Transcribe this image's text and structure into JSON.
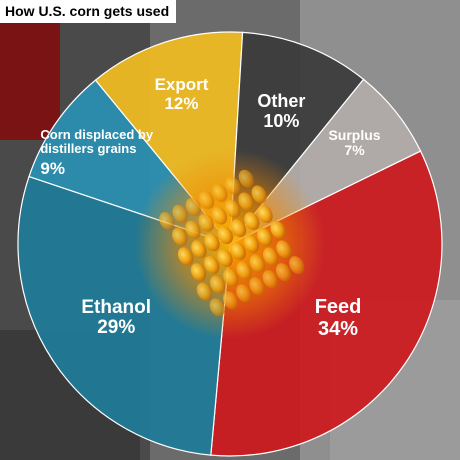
{
  "chart_data": {
    "type": "pie",
    "title": "How U.S. corn gets used",
    "slices": [
      {
        "label": "Feed",
        "value": 34,
        "value_label": "34%",
        "color": "#cc1a1f"
      },
      {
        "label": "Ethanol",
        "value": 29,
        "value_label": "29%",
        "color": "#1f7c98"
      },
      {
        "label": "Corn displaced by distillers grains",
        "value": 9,
        "value_label": "9%",
        "color": "#2a90b2"
      },
      {
        "label": "Export",
        "value": 12,
        "value_label": "12%",
        "color": "#f0bc22"
      },
      {
        "label": "Other",
        "value": 10,
        "value_label": "10%",
        "color": "#3b3b3b"
      },
      {
        "label": "Surplus",
        "value": 7,
        "value_label": "7%",
        "color": "#b2acaa"
      }
    ],
    "start_angle_deg": 64,
    "direction": "clockwise",
    "center_image": "corn-cob",
    "label_color": "#ffffff"
  }
}
